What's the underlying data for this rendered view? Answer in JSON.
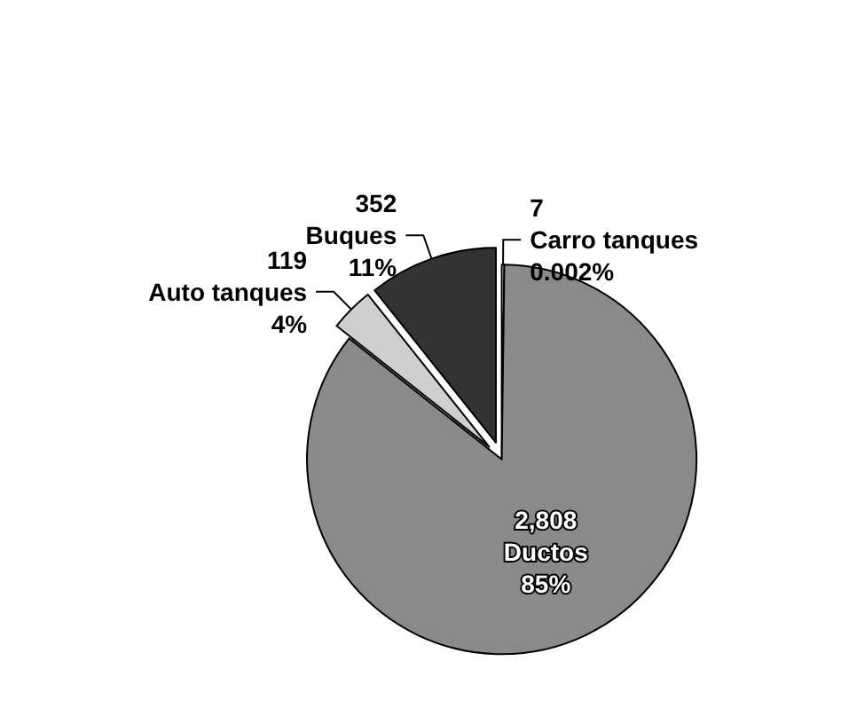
{
  "chart_data": {
    "type": "pie",
    "categories": [
      "Carro tanques",
      "Ductos",
      "Auto tanques",
      "Buques"
    ],
    "values": [
      7,
      2808,
      119,
      352
    ],
    "value_labels": [
      "7",
      "2,808",
      "119",
      "352"
    ],
    "annotations": [
      "0.002%",
      "85%",
      "4%",
      "11%"
    ],
    "colors": [
      "#ffffff",
      "#8a8a8a",
      "#cfcfcf",
      "#333333"
    ]
  }
}
